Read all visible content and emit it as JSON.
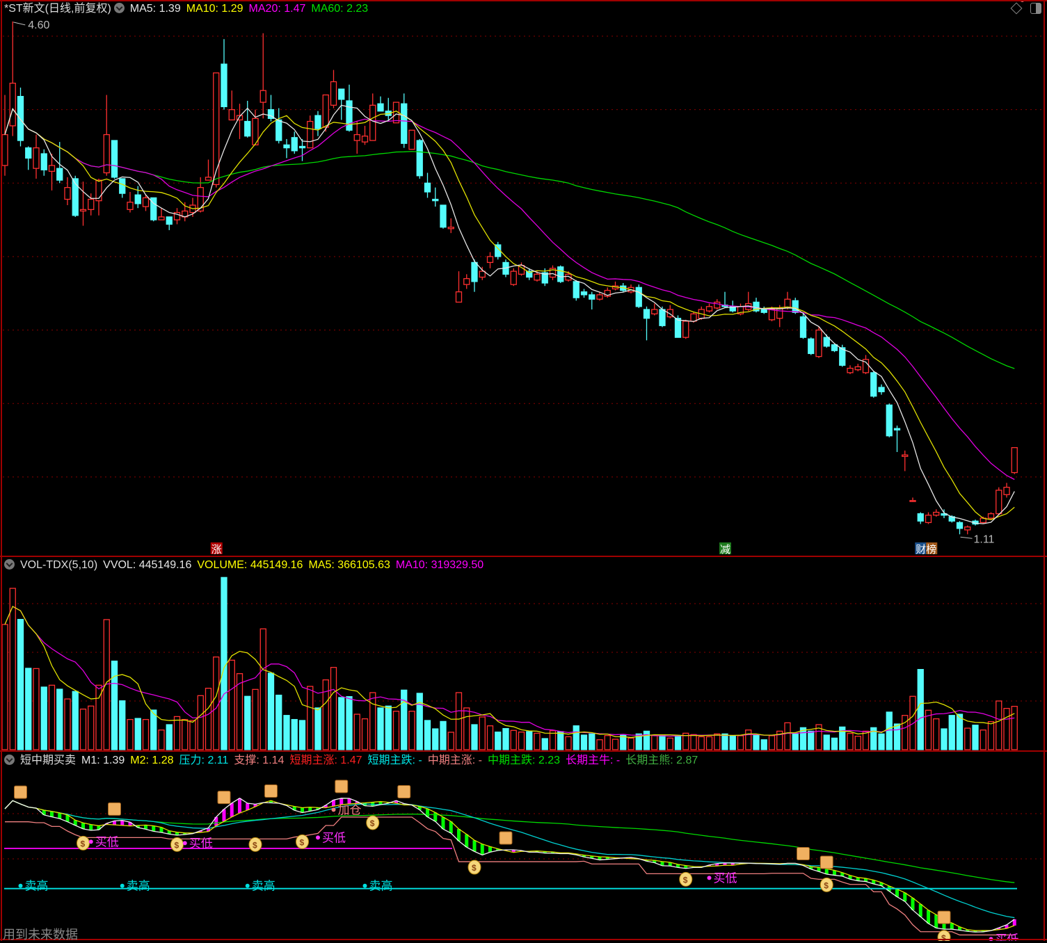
{
  "header": {
    "title": "*ST新文(日线,前复权)",
    "ma": [
      {
        "label": "MA5: 1.39",
        "color": "#e6e6e6"
      },
      {
        "label": "MA10: 1.29",
        "color": "#ffff00"
      },
      {
        "label": "MA20: 1.47",
        "color": "#ff00ff"
      },
      {
        "label": "MA60: 2.23",
        "color": "#00e000"
      }
    ]
  },
  "volume_header": {
    "name": "VOL-TDX(5,10)",
    "items": [
      {
        "label": "VVOL: 445149.16",
        "color": "#e6e6e6"
      },
      {
        "label": "VOLUME: 445149.16",
        "color": "#ffff00"
      },
      {
        "label": "MA5: 366105.63",
        "color": "#ffff00"
      },
      {
        "label": "MA10: 319329.50",
        "color": "#ff00ff"
      }
    ]
  },
  "indicator_header": {
    "name": "短中期买卖",
    "items": [
      {
        "label": "M1: 1.39",
        "color": "#e6e6e6"
      },
      {
        "label": "M2: 1.28",
        "color": "#ffff00"
      },
      {
        "label": "压力: 2.11",
        "color": "#00e5e5"
      },
      {
        "label": "支撑: 1.14",
        "color": "#f08080"
      },
      {
        "label": "短期主涨: 1.47",
        "color": "#ff2020"
      },
      {
        "label": "短期主跌: -",
        "color": "#00e5e5"
      },
      {
        "label": "中期主涨: -",
        "color": "#f08080"
      },
      {
        "label": "中期主跌: 2.23",
        "color": "#00e000"
      },
      {
        "label": "长期主牛: -",
        "color": "#ff00ff"
      },
      {
        "label": "长期主熊: 2.87",
        "color": "#40b040"
      }
    ]
  },
  "footer_note": "用到未来数据",
  "colors": {
    "up": "#ff3030",
    "down": "#54fcfc",
    "grid": "#8b0000",
    "border": "#a00000"
  },
  "chart_data": {
    "type": "candlestick",
    "price_axis": {
      "ylim": [
        0.97,
        4.65
      ],
      "grid": [
        4.5,
        4.0,
        3.5,
        3.0,
        2.5,
        2.0,
        1.5
      ]
    },
    "max_label": "4.60",
    "min_label": "1.11",
    "ohlc": [
      [
        3.62,
        3.83,
        4.1,
        3.55
      ],
      [
        3.89,
        4.18,
        4.6,
        3.82
      ],
      [
        4.09,
        3.79,
        4.15,
        3.75
      ],
      [
        3.74,
        3.67,
        3.75,
        3.59
      ],
      [
        3.6,
        3.74,
        3.83,
        3.53
      ],
      [
        3.7,
        3.59,
        3.73,
        3.55
      ],
      [
        3.58,
        3.62,
        3.7,
        3.45
      ],
      [
        3.6,
        3.52,
        3.78,
        3.5
      ],
      [
        3.39,
        3.47,
        3.54,
        3.35
      ],
      [
        3.53,
        3.28,
        3.55,
        3.27
      ],
      [
        3.31,
        3.32,
        3.51,
        3.21
      ],
      [
        3.32,
        3.39,
        3.43,
        3.28
      ],
      [
        3.38,
        3.52,
        3.53,
        3.28
      ],
      [
        3.57,
        3.83,
        4.1,
        3.55
      ],
      [
        3.79,
        3.54,
        3.79,
        3.53
      ],
      [
        3.53,
        3.43,
        3.53,
        3.4
      ],
      [
        3.32,
        3.37,
        3.44,
        3.3
      ],
      [
        3.42,
        3.36,
        3.48,
        3.33
      ],
      [
        3.34,
        3.4,
        3.42,
        3.31
      ],
      [
        3.4,
        3.25,
        3.4,
        3.24
      ],
      [
        3.25,
        3.27,
        3.33,
        3.25
      ],
      [
        3.27,
        3.22,
        3.27,
        3.18
      ],
      [
        3.25,
        3.3,
        3.33,
        3.22
      ],
      [
        3.27,
        3.31,
        3.37,
        3.24
      ],
      [
        3.3,
        3.35,
        3.4,
        3.27
      ],
      [
        3.31,
        3.47,
        3.54,
        3.3
      ],
      [
        3.52,
        3.54,
        3.66,
        3.52
      ],
      [
        3.49,
        4.25,
        4.25,
        3.47
      ],
      [
        4.31,
        4.02,
        4.48,
        4.0
      ],
      [
        3.93,
        4.0,
        4.13,
        3.93
      ],
      [
        3.93,
        3.96,
        4.04,
        3.8
      ],
      [
        3.92,
        3.82,
        4.06,
        3.81
      ],
      [
        3.76,
        3.94,
        4.0,
        3.76
      ],
      [
        4.05,
        4.13,
        4.52,
        3.94
      ],
      [
        4.0,
        3.94,
        4.1,
        3.92
      ],
      [
        3.93,
        3.79,
        4.01,
        3.77
      ],
      [
        3.76,
        3.74,
        3.8,
        3.67
      ],
      [
        3.81,
        3.72,
        3.85,
        3.7
      ],
      [
        3.75,
        3.74,
        3.8,
        3.65
      ],
      [
        3.74,
        3.92,
        3.96,
        3.74
      ],
      [
        3.96,
        3.87,
        3.99,
        3.82
      ],
      [
        3.88,
        4.1,
        4.1,
        3.85
      ],
      [
        4.03,
        4.19,
        4.27,
        4.01
      ],
      [
        4.14,
        4.07,
        4.14,
        3.93
      ],
      [
        4.06,
        3.86,
        4.17,
        3.85
      ],
      [
        3.79,
        3.83,
        3.92,
        3.7
      ],
      [
        3.78,
        3.82,
        3.89,
        3.76
      ],
      [
        3.79,
        4.03,
        4.11,
        3.79
      ],
      [
        4.04,
        3.99,
        4.09,
        3.99
      ],
      [
        3.99,
        3.96,
        4.08,
        3.93
      ],
      [
        3.91,
        4.05,
        4.05,
        3.91
      ],
      [
        4.04,
        3.77,
        4.11,
        3.74
      ],
      [
        3.73,
        3.86,
        3.86,
        3.73
      ],
      [
        3.79,
        3.55,
        3.8,
        3.53
      ],
      [
        3.5,
        3.44,
        3.57,
        3.4
      ],
      [
        3.39,
        3.38,
        3.47,
        3.34
      ],
      [
        3.35,
        3.2,
        3.35,
        3.19
      ],
      [
        3.19,
        3.2,
        3.26,
        3.16
      ],
      [
        2.69,
        2.76,
        2.9,
        2.69
      ],
      [
        2.81,
        2.85,
        2.88,
        2.78
      ],
      [
        2.96,
        2.83,
        2.98,
        2.76
      ],
      [
        2.86,
        2.9,
        2.93,
        2.84
      ],
      [
        2.96,
        3.0,
        3.03,
        2.92
      ],
      [
        3.08,
        3.0,
        3.1,
        2.98
      ],
      [
        2.96,
        2.88,
        2.98,
        2.86
      ],
      [
        2.81,
        2.9,
        2.92,
        2.8
      ],
      [
        2.88,
        2.94,
        2.96,
        2.87
      ],
      [
        2.9,
        2.86,
        2.92,
        2.84
      ],
      [
        2.84,
        2.88,
        2.9,
        2.83
      ],
      [
        2.89,
        2.82,
        2.92,
        2.8
      ],
      [
        2.86,
        2.92,
        2.94,
        2.84
      ],
      [
        2.93,
        2.83,
        2.94,
        2.82
      ],
      [
        2.84,
        2.88,
        2.9,
        2.83
      ],
      [
        2.83,
        2.72,
        2.84,
        2.7
      ],
      [
        2.76,
        2.74,
        2.78,
        2.72
      ],
      [
        2.74,
        2.71,
        2.76,
        2.64
      ],
      [
        2.71,
        2.74,
        2.76,
        2.7
      ],
      [
        2.73,
        2.77,
        2.79,
        2.72
      ],
      [
        2.78,
        2.8,
        2.83,
        2.77
      ],
      [
        2.8,
        2.77,
        2.82,
        2.76
      ],
      [
        2.76,
        2.79,
        2.81,
        2.75
      ],
      [
        2.79,
        2.66,
        2.81,
        2.65
      ],
      [
        2.64,
        2.58,
        2.66,
        2.43
      ],
      [
        2.61,
        2.64,
        2.68,
        2.6
      ],
      [
        2.64,
        2.53,
        2.66,
        2.52
      ],
      [
        2.59,
        2.64,
        2.67,
        2.58
      ],
      [
        2.58,
        2.45,
        2.6,
        2.45
      ],
      [
        2.45,
        2.56,
        2.57,
        2.44
      ],
      [
        2.56,
        2.61,
        2.62,
        2.55
      ],
      [
        2.58,
        2.64,
        2.66,
        2.57
      ],
      [
        2.63,
        2.66,
        2.68,
        2.62
      ],
      [
        2.65,
        2.69,
        2.71,
        2.64
      ],
      [
        2.67,
        2.66,
        2.76,
        2.65
      ],
      [
        2.66,
        2.63,
        2.7,
        2.62
      ],
      [
        2.61,
        2.66,
        2.68,
        2.6
      ],
      [
        2.64,
        2.68,
        2.76,
        2.63
      ],
      [
        2.69,
        2.63,
        2.72,
        2.62
      ],
      [
        2.64,
        2.62,
        2.66,
        2.61
      ],
      [
        2.57,
        2.64,
        2.66,
        2.56
      ],
      [
        2.58,
        2.65,
        2.67,
        2.52
      ],
      [
        2.65,
        2.71,
        2.76,
        2.64
      ],
      [
        2.7,
        2.62,
        2.72,
        2.61
      ],
      [
        2.59,
        2.45,
        2.61,
        2.44
      ],
      [
        2.44,
        2.34,
        2.45,
        2.33
      ],
      [
        2.32,
        2.5,
        2.52,
        2.31
      ],
      [
        2.45,
        2.39,
        2.47,
        2.38
      ],
      [
        2.4,
        2.36,
        2.41,
        2.35
      ],
      [
        2.38,
        2.26,
        2.4,
        2.25
      ],
      [
        2.21,
        2.24,
        2.26,
        2.2
      ],
      [
        2.23,
        2.25,
        2.27,
        2.22
      ],
      [
        2.21,
        2.3,
        2.33,
        2.2
      ],
      [
        2.21,
        2.05,
        2.22,
        2.04
      ],
      [
        2.11,
        2.08,
        2.13,
        2.06
      ],
      [
        1.99,
        1.78,
        2.0,
        1.77
      ],
      [
        1.83,
        1.82,
        1.85,
        1.67
      ],
      [
        1.64,
        1.65,
        1.68,
        1.54
      ],
      [
        1.34,
        1.34,
        1.36,
        1.33
      ],
      [
        1.25,
        1.2,
        1.26,
        1.18
      ],
      [
        1.19,
        1.24,
        1.26,
        1.18
      ],
      [
        1.24,
        1.26,
        1.28,
        1.23
      ],
      [
        1.25,
        1.24,
        1.28,
        1.22
      ],
      [
        1.23,
        1.2,
        1.24,
        1.19
      ],
      [
        1.19,
        1.15,
        1.2,
        1.11
      ],
      [
        1.14,
        1.16,
        1.17,
        1.11
      ],
      [
        1.2,
        1.18,
        1.21,
        1.17
      ],
      [
        1.19,
        1.22,
        1.23,
        1.18
      ],
      [
        1.22,
        1.25,
        1.26,
        1.21
      ],
      [
        1.25,
        1.41,
        1.43,
        1.24
      ],
      [
        1.38,
        1.43,
        1.46,
        1.36
      ],
      [
        1.53,
        1.7,
        1.7,
        1.52
      ]
    ],
    "volume_axis": {
      "grid": [
        1500000,
        1000000,
        500000
      ]
    },
    "volume": [
      1286000,
      1657000,
      1338000,
      836000,
      833000,
      643000,
      662000,
      621000,
      521000,
      598000,
      417000,
      448000,
      662000,
      1336000,
      910000,
      502000,
      310000,
      321000,
      310000,
      407000,
      202000,
      257000,
      340000,
      310000,
      300000,
      555000,
      631000,
      952000,
      1769000,
      919000,
      781000,
      548000,
      619000,
      1241000,
      786000,
      560000,
      352000,
      310000,
      300000,
      650000,
      429000,
      717000,
      845000,
      536000,
      545000,
      364000,
      317000,
      586000,
      429000,
      448000,
      395000,
      612000,
      395000,
      579000,
      300000,
      214000,
      290000,
      179000,
      586000,
      429000,
      257000,
      336000,
      245000,
      181000,
      217000,
      198000,
      181000,
      186000,
      169000,
      114000,
      195000,
      186000,
      133000,
      245000,
      150000,
      162000,
      102000,
      145000,
      107000,
      150000,
      119000,
      162000,
      190000,
      145000,
      145000,
      119000,
      145000,
      169000,
      155000,
      133000,
      133000,
      162000,
      162000,
      143000,
      143000,
      202000,
      155000,
      102000,
      143000,
      190000,
      276000,
      162000,
      226000,
      190000,
      257000,
      150000,
      119000,
      233000,
      167000,
      138000,
      190000,
      226000,
      162000,
      386000,
      264000,
      352000,
      548000,
      824000,
      405000,
      317000,
      214000,
      352000,
      364000,
      221000,
      252000,
      202000,
      288000,
      500000,
      424000,
      445149
    ],
    "events": [
      {
        "index": 27,
        "label": "涨",
        "color": "#b00000"
      },
      {
        "index": 92,
        "label": "减",
        "color": "#1e7a1e"
      },
      {
        "index": 117,
        "label": "财榜",
        "color": "#1a4f8a",
        "color2": "#a0581a"
      }
    ],
    "indicator": {
      "pressure": 2.11,
      "support": 1.14,
      "signals": [
        {
          "index": 2,
          "label": "卖高",
          "type": "sell"
        },
        {
          "index": 15,
          "label": "卖高",
          "type": "sell"
        },
        {
          "index": 31,
          "label": "卖高",
          "type": "sell"
        },
        {
          "index": 46,
          "label": "卖高",
          "type": "sell"
        },
        {
          "index": 11,
          "label": "买低",
          "type": "buy"
        },
        {
          "index": 23,
          "label": "买低",
          "type": "buy"
        },
        {
          "index": 40,
          "label": "买低",
          "type": "buy"
        },
        {
          "index": 90,
          "label": "买低",
          "type": "buy"
        },
        {
          "index": 126,
          "label": "买低",
          "type": "buy"
        },
        {
          "index": 42,
          "label": "加仓",
          "type": "add"
        },
        {
          "index": 130,
          "label": "加仓",
          "type": "add"
        }
      ],
      "money_bag_icons": [
        10,
        22,
        32,
        38,
        47,
        60,
        87,
        105,
        120
      ],
      "scroll_icons": [
        2,
        14,
        28,
        34,
        43,
        51,
        64,
        102,
        105,
        120
      ]
    }
  }
}
